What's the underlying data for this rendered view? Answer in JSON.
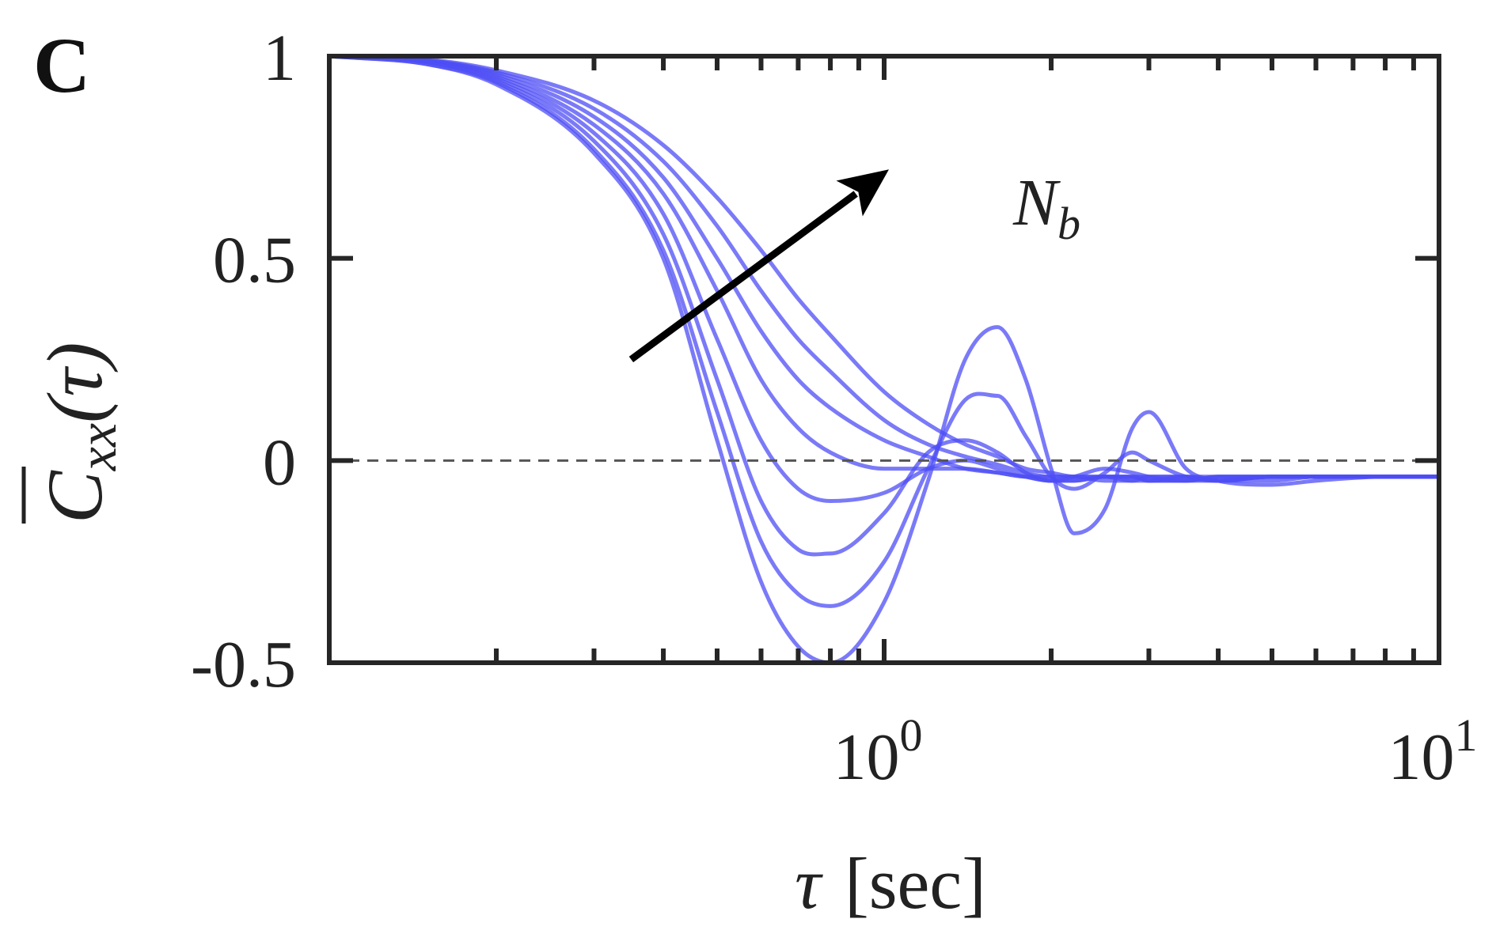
{
  "panel_label": "C",
  "chart_data": {
    "type": "line",
    "title": "",
    "xscale": "log",
    "xlim": [
      0.1,
      10
    ],
    "ylim": [
      -0.5,
      1
    ],
    "yticks": [
      {
        "value": 1,
        "label": "1"
      },
      {
        "value": 0.5,
        "label": "0.5"
      },
      {
        "value": 0,
        "label": "0"
      },
      {
        "value": -0.5,
        "label": "-0.5"
      }
    ],
    "xticks": [
      {
        "value": 1,
        "base": "10",
        "exp": "0"
      },
      {
        "value": 10,
        "base": "10",
        "exp": "1"
      }
    ],
    "xlabel": {
      "symbol": "τ",
      "unit": "[sec]"
    },
    "ylabel": {
      "symbol": "C",
      "subscript": "xx",
      "argument": "(τ)"
    },
    "reference_line": {
      "y": 0,
      "style": "dashed"
    },
    "annotation": {
      "symbol": "N",
      "subscript": "b",
      "from": [
        0.35,
        0.25
      ],
      "to": [
        1.02,
        0.72
      ]
    },
    "line_color": "#4d4df5",
    "series": [
      {
        "name": "curve 1",
        "x": [
          0.1,
          0.15,
          0.2,
          0.3,
          0.4,
          0.5,
          0.6,
          0.7,
          0.8,
          1.0,
          1.2,
          1.4,
          1.6,
          1.8,
          2.0,
          2.2,
          2.5,
          2.8,
          3.0,
          3.5,
          4.0,
          5.0,
          6.0,
          8.0,
          10.0
        ],
        "y": [
          1.0,
          0.98,
          0.93,
          0.76,
          0.5,
          0.05,
          -0.3,
          -0.46,
          -0.5,
          -0.35,
          -0.05,
          0.25,
          0.33,
          0.2,
          -0.02,
          -0.18,
          -0.12,
          0.08,
          0.12,
          -0.02,
          -0.05,
          -0.06,
          -0.05,
          -0.04,
          -0.04
        ]
      },
      {
        "name": "curve 2",
        "x": [
          0.1,
          0.15,
          0.2,
          0.3,
          0.4,
          0.5,
          0.6,
          0.7,
          0.8,
          1.0,
          1.2,
          1.4,
          1.6,
          1.8,
          2.0,
          2.2,
          2.5,
          2.8,
          3.0,
          3.5,
          4.0,
          5.0,
          6.0,
          8.0,
          10.0
        ],
        "y": [
          1.0,
          0.98,
          0.935,
          0.77,
          0.52,
          0.12,
          -0.2,
          -0.33,
          -0.36,
          -0.25,
          -0.02,
          0.15,
          0.16,
          0.06,
          -0.04,
          -0.07,
          -0.03,
          0.02,
          0.0,
          -0.04,
          -0.05,
          -0.05,
          -0.04,
          -0.04,
          -0.04
        ]
      },
      {
        "name": "curve 3",
        "x": [
          0.1,
          0.15,
          0.2,
          0.3,
          0.4,
          0.5,
          0.6,
          0.7,
          0.8,
          1.0,
          1.2,
          1.4,
          1.6,
          1.8,
          2.0,
          2.2,
          2.5,
          2.8,
          3.0,
          3.5,
          4.0,
          5.0,
          6.0,
          8.0,
          10.0
        ],
        "y": [
          1.0,
          0.985,
          0.94,
          0.79,
          0.56,
          0.2,
          -0.1,
          -0.22,
          -0.23,
          -0.13,
          0.02,
          0.05,
          0.02,
          -0.03,
          -0.05,
          -0.04,
          -0.02,
          -0.03,
          -0.04,
          -0.05,
          -0.05,
          -0.04,
          -0.04,
          -0.04,
          -0.04
        ]
      },
      {
        "name": "curve 4",
        "x": [
          0.1,
          0.15,
          0.2,
          0.3,
          0.4,
          0.5,
          0.6,
          0.7,
          0.8,
          1.0,
          1.2,
          1.4,
          1.6,
          1.8,
          2.0,
          2.2,
          2.5,
          2.8,
          3.0,
          3.5,
          4.0,
          5.0,
          6.0,
          8.0,
          10.0
        ],
        "y": [
          1.0,
          0.985,
          0.945,
          0.81,
          0.61,
          0.3,
          0.05,
          -0.07,
          -0.1,
          -0.08,
          -0.02,
          0.0,
          -0.02,
          -0.04,
          -0.05,
          -0.05,
          -0.04,
          -0.04,
          -0.04,
          -0.04,
          -0.05,
          -0.04,
          -0.04,
          -0.04,
          -0.04
        ]
      },
      {
        "name": "curve 5",
        "x": [
          0.1,
          0.15,
          0.2,
          0.3,
          0.4,
          0.5,
          0.6,
          0.7,
          0.8,
          1.0,
          1.2,
          1.4,
          1.6,
          1.8,
          2.0,
          2.2,
          2.5,
          2.8,
          3.0,
          3.5,
          4.0,
          5.0,
          6.0,
          8.0,
          10.0
        ],
        "y": [
          1.0,
          0.988,
          0.95,
          0.83,
          0.66,
          0.42,
          0.2,
          0.08,
          0.02,
          -0.02,
          -0.02,
          -0.02,
          -0.03,
          -0.04,
          -0.05,
          -0.05,
          -0.04,
          -0.04,
          -0.05,
          -0.05,
          -0.04,
          -0.04,
          -0.04,
          -0.04,
          -0.04
        ]
      },
      {
        "name": "curve 6",
        "x": [
          0.1,
          0.15,
          0.2,
          0.3,
          0.4,
          0.5,
          0.6,
          0.7,
          0.8,
          1.0,
          1.2,
          1.4,
          1.6,
          1.8,
          2.0,
          2.2,
          2.5,
          2.8,
          3.0,
          3.5,
          4.0,
          5.0,
          6.0,
          8.0,
          10.0
        ],
        "y": [
          1.0,
          0.99,
          0.955,
          0.85,
          0.7,
          0.5,
          0.32,
          0.2,
          0.13,
          0.05,
          0.01,
          -0.02,
          -0.03,
          -0.04,
          -0.04,
          -0.04,
          -0.05,
          -0.05,
          -0.04,
          -0.04,
          -0.05,
          -0.04,
          -0.04,
          -0.04,
          -0.04
        ]
      },
      {
        "name": "curve 7",
        "x": [
          0.1,
          0.15,
          0.2,
          0.3,
          0.4,
          0.5,
          0.6,
          0.7,
          0.8,
          1.0,
          1.2,
          1.4,
          1.6,
          1.8,
          2.0,
          2.2,
          2.5,
          2.8,
          3.0,
          3.5,
          4.0,
          5.0,
          6.0,
          8.0,
          10.0
        ],
        "y": [
          1.0,
          0.99,
          0.96,
          0.87,
          0.74,
          0.58,
          0.42,
          0.3,
          0.22,
          0.1,
          0.04,
          0.01,
          -0.01,
          -0.03,
          -0.04,
          -0.04,
          -0.04,
          -0.05,
          -0.05,
          -0.04,
          -0.04,
          -0.04,
          -0.04,
          -0.04,
          -0.04
        ]
      },
      {
        "name": "curve 8",
        "x": [
          0.1,
          0.15,
          0.2,
          0.3,
          0.4,
          0.5,
          0.6,
          0.7,
          0.8,
          1.0,
          1.2,
          1.4,
          1.6,
          1.8,
          2.0,
          2.2,
          2.5,
          2.8,
          3.0,
          3.5,
          4.0,
          5.0,
          6.0,
          8.0,
          10.0
        ],
        "y": [
          1.0,
          0.992,
          0.965,
          0.89,
          0.78,
          0.65,
          0.52,
          0.4,
          0.31,
          0.17,
          0.09,
          0.04,
          0.01,
          -0.02,
          -0.03,
          -0.04,
          -0.04,
          -0.04,
          -0.05,
          -0.05,
          -0.04,
          -0.04,
          -0.04,
          -0.04,
          -0.04
        ]
      }
    ]
  }
}
